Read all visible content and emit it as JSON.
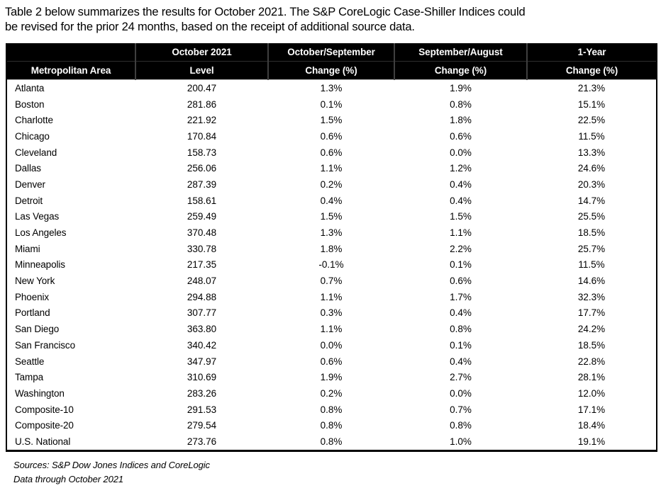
{
  "intro": {
    "line1": "Table 2 below summarizes the results for October 2021. The S&P CoreLogic Case-Shiller Indices could",
    "line2": "be revised for the prior 24 months, based on the receipt of additional source data."
  },
  "table": {
    "columns": [
      {
        "top": "",
        "bottom": "Metropolitan Area"
      },
      {
        "top": "October 2021",
        "bottom": "Level"
      },
      {
        "top": "October/September",
        "bottom": "Change (%)"
      },
      {
        "top": "September/August",
        "bottom": "Change (%)"
      },
      {
        "top": "1-Year",
        "bottom": "Change (%)"
      }
    ],
    "rows": [
      {
        "area": "Atlanta",
        "level": "200.47",
        "oct_sep_change": "1.3%",
        "sep_aug_change": "1.9%",
        "one_year_change": "21.3%"
      },
      {
        "area": "Boston",
        "level": "281.86",
        "oct_sep_change": "0.1%",
        "sep_aug_change": "0.8%",
        "one_year_change": "15.1%"
      },
      {
        "area": "Charlotte",
        "level": "221.92",
        "oct_sep_change": "1.5%",
        "sep_aug_change": "1.8%",
        "one_year_change": "22.5%"
      },
      {
        "area": "Chicago",
        "level": "170.84",
        "oct_sep_change": "0.6%",
        "sep_aug_change": "0.6%",
        "one_year_change": "11.5%"
      },
      {
        "area": "Cleveland",
        "level": "158.73",
        "oct_sep_change": "0.6%",
        "sep_aug_change": "0.0%",
        "one_year_change": "13.3%"
      },
      {
        "area": "Dallas",
        "level": "256.06",
        "oct_sep_change": "1.1%",
        "sep_aug_change": "1.2%",
        "one_year_change": "24.6%"
      },
      {
        "area": "Denver",
        "level": "287.39",
        "oct_sep_change": "0.2%",
        "sep_aug_change": "0.4%",
        "one_year_change": "20.3%"
      },
      {
        "area": "Detroit",
        "level": "158.61",
        "oct_sep_change": "0.4%",
        "sep_aug_change": "0.4%",
        "one_year_change": "14.7%"
      },
      {
        "area": "Las Vegas",
        "level": "259.49",
        "oct_sep_change": "1.5%",
        "sep_aug_change": "1.5%",
        "one_year_change": "25.5%"
      },
      {
        "area": "Los Angeles",
        "level": "370.48",
        "oct_sep_change": "1.3%",
        "sep_aug_change": "1.1%",
        "one_year_change": "18.5%"
      },
      {
        "area": "Miami",
        "level": "330.78",
        "oct_sep_change": "1.8%",
        "sep_aug_change": "2.2%",
        "one_year_change": "25.7%"
      },
      {
        "area": "Minneapolis",
        "level": "217.35",
        "oct_sep_change": "-0.1%",
        "sep_aug_change": "0.1%",
        "one_year_change": "11.5%"
      },
      {
        "area": "New York",
        "level": "248.07",
        "oct_sep_change": "0.7%",
        "sep_aug_change": "0.6%",
        "one_year_change": "14.6%"
      },
      {
        "area": "Phoenix",
        "level": "294.88",
        "oct_sep_change": "1.1%",
        "sep_aug_change": "1.7%",
        "one_year_change": "32.3%"
      },
      {
        "area": "Portland",
        "level": "307.77",
        "oct_sep_change": "0.3%",
        "sep_aug_change": "0.4%",
        "one_year_change": "17.7%"
      },
      {
        "area": "San Diego",
        "level": "363.80",
        "oct_sep_change": "1.1%",
        "sep_aug_change": "0.8%",
        "one_year_change": "24.2%"
      },
      {
        "area": "San Francisco",
        "level": "340.42",
        "oct_sep_change": "0.0%",
        "sep_aug_change": "0.1%",
        "one_year_change": "18.5%"
      },
      {
        "area": "Seattle",
        "level": "347.97",
        "oct_sep_change": "0.6%",
        "sep_aug_change": "0.4%",
        "one_year_change": "22.8%"
      },
      {
        "area": "Tampa",
        "level": "310.69",
        "oct_sep_change": "1.9%",
        "sep_aug_change": "2.7%",
        "one_year_change": "28.1%"
      },
      {
        "area": "Washington",
        "level": "283.26",
        "oct_sep_change": "0.2%",
        "sep_aug_change": "0.0%",
        "one_year_change": "12.0%"
      },
      {
        "area": "Composite-10",
        "level": "291.53",
        "oct_sep_change": "0.8%",
        "sep_aug_change": "0.7%",
        "one_year_change": "17.1%"
      },
      {
        "area": "Composite-20",
        "level": "279.54",
        "oct_sep_change": "0.8%",
        "sep_aug_change": "0.8%",
        "one_year_change": "18.4%"
      },
      {
        "area": "U.S. National",
        "level": "273.76",
        "oct_sep_change": "0.8%",
        "sep_aug_change": "1.0%",
        "one_year_change": "19.1%"
      }
    ]
  },
  "footnotes": {
    "sources": "Sources: S&P Dow Jones Indices and CoreLogic",
    "data_through": "Data through October 2021"
  }
}
